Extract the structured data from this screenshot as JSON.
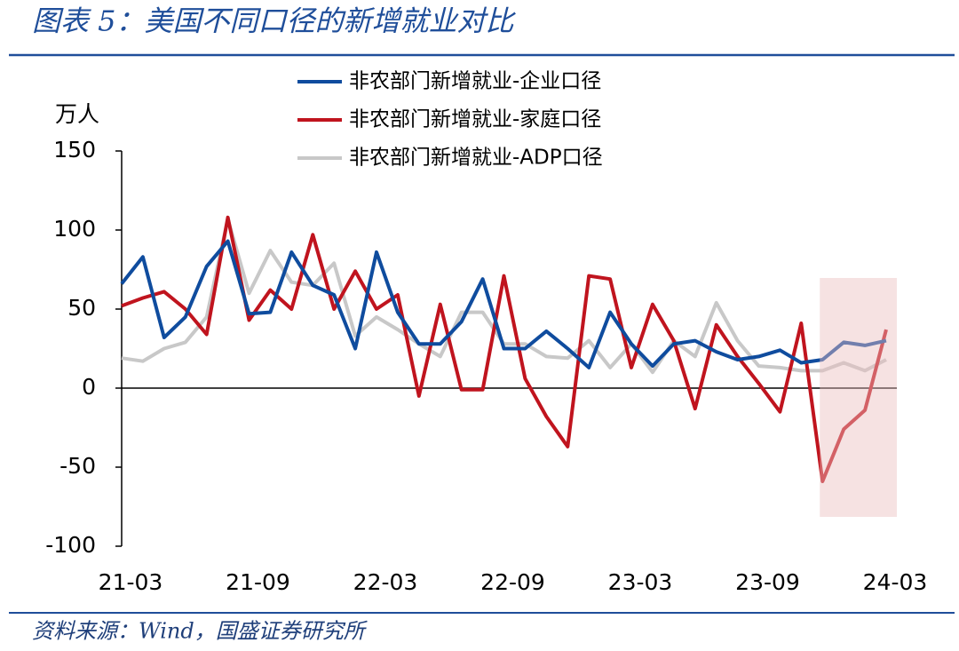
{
  "title": "图表 5：美国不同口径的新增就业对比",
  "source": "资料来源：Wind，国盛证券研究所",
  "chart_data": {
    "type": "line",
    "y_label": "万人",
    "categories": [
      "21-03",
      null,
      null,
      null,
      null,
      null,
      "21-09",
      null,
      null,
      null,
      null,
      null,
      "22-03",
      null,
      null,
      null,
      null,
      null,
      "22-09",
      null,
      null,
      null,
      null,
      null,
      "23-03",
      null,
      null,
      null,
      null,
      null,
      "23-09",
      null,
      null,
      null,
      null,
      null,
      "24-03"
    ],
    "series": [
      {
        "name": "非农部门新增就业-企业口径",
        "color": "#0f4c9e",
        "values": [
          66,
          83,
          32,
          45,
          77,
          93,
          47,
          48,
          86,
          65,
          59,
          25,
          86,
          48,
          28,
          28,
          42,
          69,
          25,
          25,
          36,
          25,
          13,
          48,
          28,
          14,
          28,
          30,
          23,
          18,
          20,
          24,
          16,
          18,
          29,
          27,
          30
        ]
      },
      {
        "name": "非农部门新增就业-家庭口径",
        "color": "#c0141e",
        "values": [
          52,
          57,
          61,
          50,
          34,
          108,
          43,
          62,
          50,
          97,
          50,
          74,
          50,
          59,
          -5,
          53,
          -1,
          -1,
          71,
          6,
          -18,
          -37,
          71,
          69,
          13,
          53,
          30,
          -13,
          40,
          20,
          3,
          -15,
          41,
          -59,
          -26,
          -14,
          37
        ]
      },
      {
        "name": "非农部门新增就业-ADP口径",
        "color": "#c8c8c8",
        "values": [
          19,
          17,
          25,
          29,
          45,
          107,
          60,
          87,
          67,
          65,
          79,
          33,
          45,
          37,
          28,
          20,
          48,
          48,
          28,
          28,
          20,
          19,
          30,
          13,
          28,
          10,
          30,
          20,
          54,
          30,
          14,
          13,
          11,
          11,
          16,
          11,
          18
        ]
      }
    ],
    "ylim": [
      -100,
      150
    ],
    "yticks": [
      -100,
      -50,
      0,
      50,
      100,
      150
    ]
  }
}
